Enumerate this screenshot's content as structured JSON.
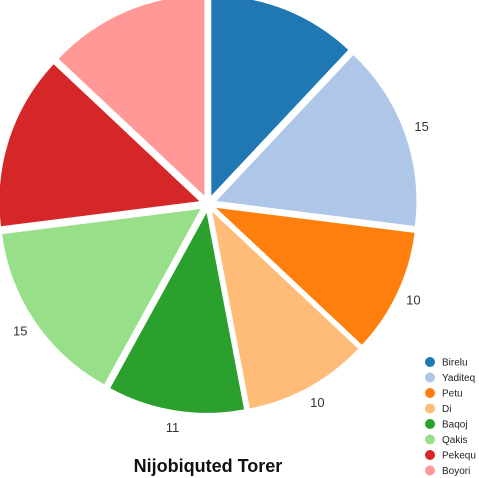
{
  "chart_data": {
    "type": "pie",
    "title": "Nijobiquted Torer",
    "categories": [
      "Birelu",
      "Yaditeq",
      "Petu",
      "Di",
      "Baqoj",
      "Qakis",
      "Pekequ",
      "Boyori"
    ],
    "values": [
      12,
      15,
      10,
      10,
      11,
      15,
      14,
      13
    ],
    "colors": [
      "#1f77b4",
      "#aec7e8",
      "#ff7f0e",
      "#ffbb78",
      "#2ca02c",
      "#98df8a",
      "#d62728",
      "#ff9896"
    ],
    "exploded": true,
    "start_angle": "12 o'clock",
    "direction": "clockwise",
    "legend_position": "bottom-right"
  }
}
